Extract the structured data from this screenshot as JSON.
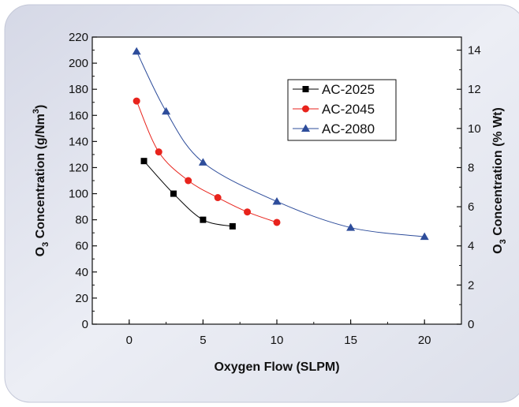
{
  "chart_data": {
    "type": "line",
    "xlabel": "Oxygen Flow (SLPM)",
    "ylabel_main": "O",
    "ylabel_sub": "3",
    "ylabel_rest": " Concentration (g/Nm",
    "ylabel_sup": "3",
    "ylabel_close": ")",
    "y2label_main": "O",
    "y2label_sub": "3",
    "y2label_rest": " Concentration (% Wt)",
    "xlim": [
      -2.5,
      22.5
    ],
    "ylim": [
      0,
      220
    ],
    "y2lim": [
      0,
      14.6667
    ],
    "xticks": [
      0,
      5,
      10,
      15,
      20
    ],
    "yticks": [
      0,
      20,
      40,
      60,
      80,
      100,
      120,
      140,
      160,
      180,
      200,
      220
    ],
    "y2ticks": [
      0,
      2,
      4,
      6,
      8,
      10,
      12,
      14
    ],
    "grid": false,
    "legend_position": "top-right",
    "series": [
      {
        "name": "AC-2025",
        "color": "#000000",
        "marker": "square",
        "x": [
          1,
          3,
          5,
          7
        ],
        "y": [
          125,
          100,
          80,
          75
        ]
      },
      {
        "name": "AC-2045",
        "color": "#e8231c",
        "marker": "circle",
        "x": [
          0.5,
          2,
          4,
          6,
          8,
          10
        ],
        "y": [
          171,
          132,
          110,
          97,
          86,
          78
        ]
      },
      {
        "name": "AC-2080",
        "color": "#2e4d9b",
        "marker": "triangle",
        "x": [
          0.5,
          2.5,
          5,
          10,
          15,
          20
        ],
        "y": [
          209,
          163,
          124,
          94,
          74,
          67
        ]
      }
    ]
  }
}
